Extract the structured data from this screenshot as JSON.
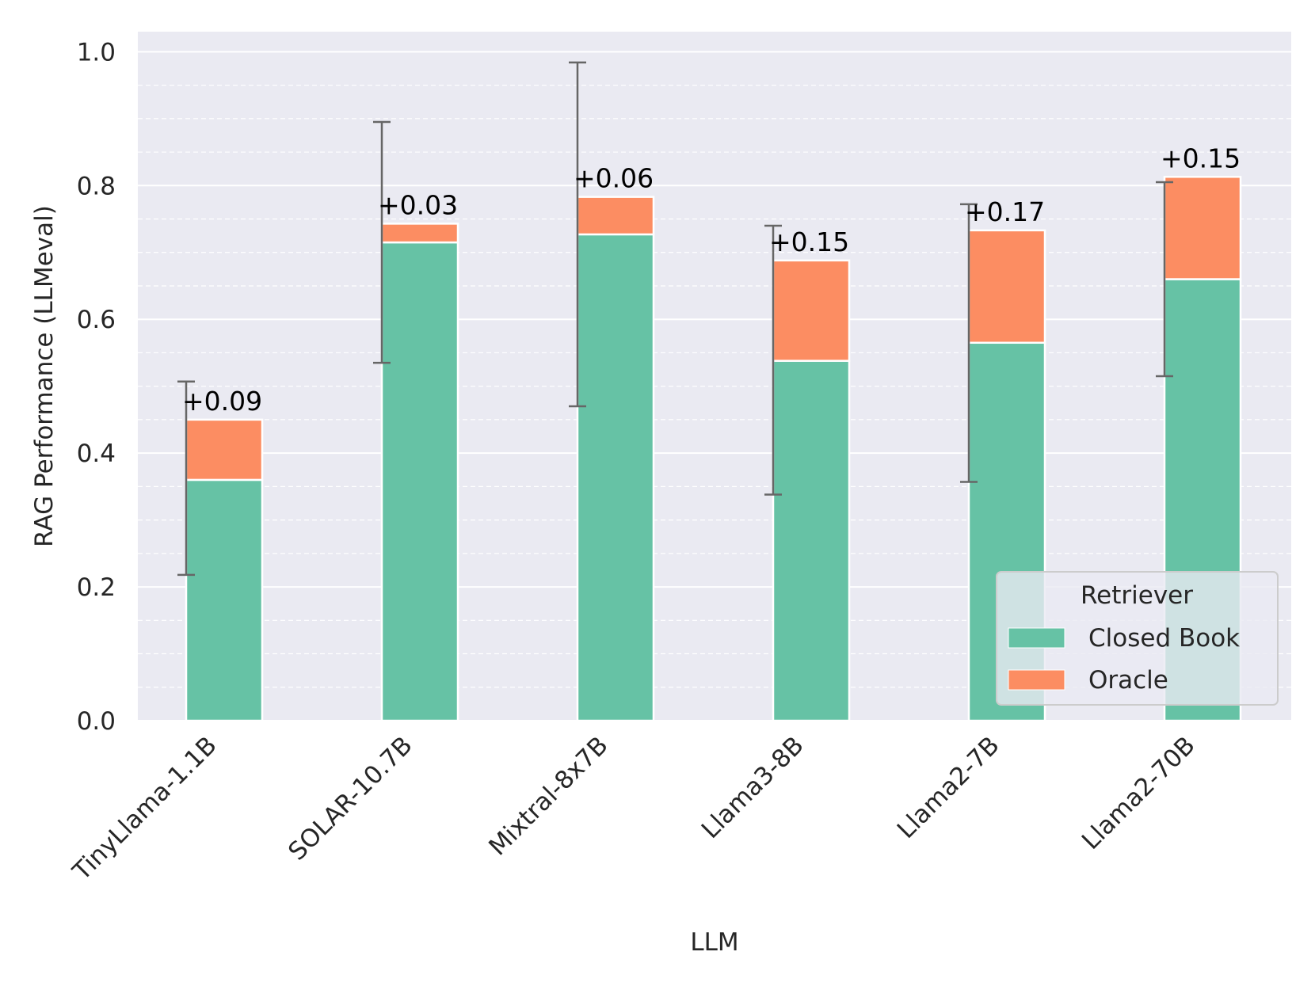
{
  "chart_data": {
    "type": "bar",
    "stacked": true,
    "xlabel": "LLM",
    "ylabel": "RAG Performance (LLMeval)",
    "ylim": [
      0,
      1.03
    ],
    "yticks": [
      0.0,
      0.2,
      0.4,
      0.6,
      0.8,
      1.0
    ],
    "ytick_labels": [
      "0.0",
      "0.2",
      "0.4",
      "0.6",
      "0.8",
      "1.0"
    ],
    "grid": true,
    "categories": [
      "TinyLlama-1.1B",
      "SOLAR-10.7B",
      "Mixtral-8x7B",
      "Llama3-8B",
      "Llama2-7B",
      "Llama2-70B"
    ],
    "series": [
      {
        "name": "Closed Book",
        "color": "#66c2a5",
        "values": [
          0.36,
          0.715,
          0.727,
          0.538,
          0.565,
          0.66
        ]
      },
      {
        "name": "Oracle",
        "color": "#fc8d62",
        "values": [
          0.09,
          0.028,
          0.056,
          0.15,
          0.168,
          0.153
        ]
      }
    ],
    "error_bars": [
      {
        "low": 0.218,
        "high": 0.507
      },
      {
        "low": 0.535,
        "high": 0.895
      },
      {
        "low": 0.47,
        "high": 0.984
      },
      {
        "low": 0.338,
        "high": 0.74
      },
      {
        "low": 0.357,
        "high": 0.772
      },
      {
        "low": 0.515,
        "high": 0.805
      }
    ],
    "annotations": [
      "+0.09",
      "+0.03",
      "+0.06",
      "+0.15",
      "+0.17",
      "+0.15"
    ],
    "legend": {
      "title": "Retriever",
      "position": "lower-right"
    }
  }
}
